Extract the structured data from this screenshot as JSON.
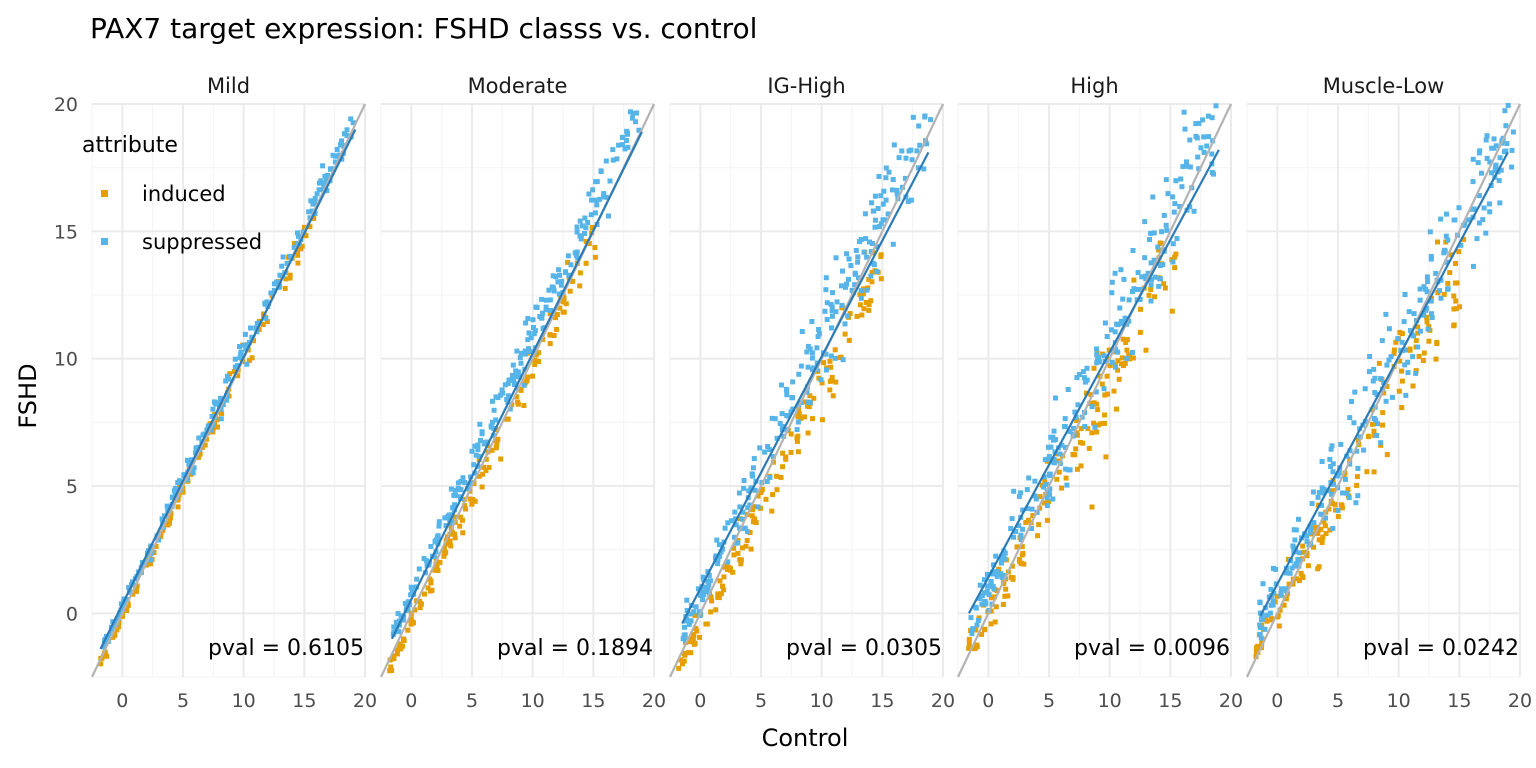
{
  "chart_data": {
    "type": "scatter",
    "title": "PAX7 target expression: FSHD classs vs. control",
    "xlabel": "Control",
    "ylabel": "FSHD",
    "xlim": [
      -2.5,
      20
    ],
    "ylim": [
      -2.5,
      20
    ],
    "x_ticks": [
      0,
      5,
      10,
      15,
      20
    ],
    "y_ticks": [
      0,
      5,
      10,
      15,
      20
    ],
    "grid": true,
    "legend": {
      "title": "attribute",
      "position": "top-left inside first panel",
      "entries": [
        {
          "label": "induced",
          "color": "#E69F00"
        },
        {
          "label": "suppressed",
          "color": "#56B4E9"
        }
      ]
    },
    "identity_line_color": "#b3b3b3",
    "fit_line_color": "#2c7bb6",
    "panels": [
      {
        "name": "Mild",
        "pval": "pval = 0.6105",
        "fit": {
          "x0": -1.8,
          "y0": -1.4,
          "x1": 19.2,
          "y1": 19.0
        },
        "clusters": [
          {
            "series": "induced",
            "x_range": [
              -1.8,
              16
            ],
            "slope": 1.0,
            "intercept": -0.1,
            "noise": 0.3,
            "n": 140
          },
          {
            "series": "suppressed",
            "x_range": [
              -1.5,
              19.2
            ],
            "slope": 1.0,
            "intercept": 0.25,
            "noise": 0.3,
            "n": 220
          }
        ]
      },
      {
        "name": "Moderate",
        "pval": "pval = 0.1894",
        "fit": {
          "x0": -1.6,
          "y0": -1.0,
          "x1": 19.0,
          "y1": 18.9
        },
        "clusters": [
          {
            "series": "induced",
            "x_range": [
              -1.8,
              15.5
            ],
            "slope": 1.0,
            "intercept": -0.35,
            "noise": 0.45,
            "n": 150
          },
          {
            "series": "suppressed",
            "x_range": [
              -1.5,
              19.0
            ],
            "slope": 1.02,
            "intercept": 0.7,
            "noise": 0.5,
            "n": 240
          }
        ]
      },
      {
        "name": "IG-High",
        "pval": "pval = 0.0305",
        "fit": {
          "x0": -1.5,
          "y0": -0.4,
          "x1": 18.8,
          "y1": 18.1
        },
        "clusters": [
          {
            "series": "induced",
            "x_range": [
              -1.8,
              15
            ],
            "slope": 0.95,
            "intercept": -0.5,
            "noise": 0.7,
            "n": 150
          },
          {
            "series": "suppressed",
            "x_range": [
              -1.5,
              19.0
            ],
            "slope": 1.0,
            "intercept": 0.6,
            "noise": 0.9,
            "n": 250
          }
        ]
      },
      {
        "name": "High",
        "pval": "pval = 0.0096",
        "fit": {
          "x0": -1.6,
          "y0": 0.0,
          "x1": 19.0,
          "y1": 18.2
        },
        "clusters": [
          {
            "series": "induced",
            "x_range": [
              -1.8,
              15.5
            ],
            "slope": 0.92,
            "intercept": 0.0,
            "noise": 0.9,
            "n": 150
          },
          {
            "series": "suppressed",
            "x_range": [
              -1.5,
              19.0
            ],
            "slope": 0.97,
            "intercept": 0.9,
            "noise": 1.0,
            "n": 250
          }
        ]
      },
      {
        "name": "Muscle-Low",
        "pval": "pval = 0.0242",
        "fit": {
          "x0": -1.4,
          "y0": -0.1,
          "x1": 19.0,
          "y1": 18.1
        },
        "clusters": [
          {
            "series": "induced",
            "x_range": [
              -1.8,
              15.5
            ],
            "slope": 0.88,
            "intercept": 0.2,
            "noise": 1.0,
            "n": 150
          },
          {
            "series": "suppressed",
            "x_range": [
              -1.5,
              19.5
            ],
            "slope": 0.93,
            "intercept": 1.0,
            "noise": 1.2,
            "n": 250
          }
        ]
      }
    ]
  }
}
